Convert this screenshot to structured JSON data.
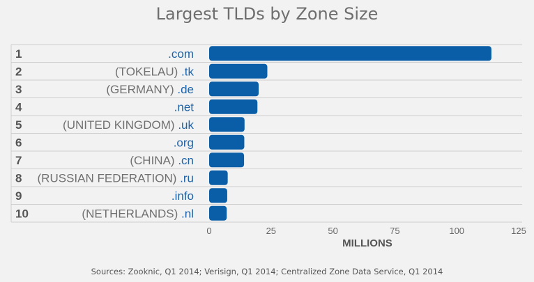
{
  "chart_data": {
    "type": "bar",
    "orientation": "horizontal",
    "title": "Largest TLDs by Zone Size",
    "xlabel": "MILLIONS",
    "xlim": [
      0,
      125
    ],
    "xticks": [
      "0",
      "25",
      "50",
      "75",
      "100",
      "125"
    ],
    "bar_color": "#0a5ea8",
    "grid": false,
    "rows": [
      {
        "rank": "1",
        "country": "",
        "tld": ".com",
        "value": 114
      },
      {
        "rank": "2",
        "country": "(TOKELAU) ",
        "tld": ".tk",
        "value": 23.5
      },
      {
        "rank": "3",
        "country": "(GERMANY) ",
        "tld": ".de",
        "value": 20
      },
      {
        "rank": "4",
        "country": "",
        "tld": ".net",
        "value": 19.5
      },
      {
        "rank": "5",
        "country": "(UNITED KINGDOM) ",
        "tld": ".uk",
        "value": 14.3
      },
      {
        "rank": "6",
        "country": "",
        "tld": ".org",
        "value": 14.2
      },
      {
        "rank": "7",
        "country": "(CHINA) ",
        "tld": ".cn",
        "value": 14.1
      },
      {
        "rank": "8",
        "country": "(RUSSIAN FEDERATION) ",
        "tld": ".ru",
        "value": 7.5
      },
      {
        "rank": "9",
        "country": "",
        "tld": ".info",
        "value": 7.3
      },
      {
        "rank": "10",
        "country": "(NETHERLANDS) ",
        "tld": ".nl",
        "value": 7.1
      }
    ]
  },
  "source_note": "Sources: Zooknic, Q1 2014; Verisign, Q1 2014; Centralized Zone Data Service, Q1 2014"
}
